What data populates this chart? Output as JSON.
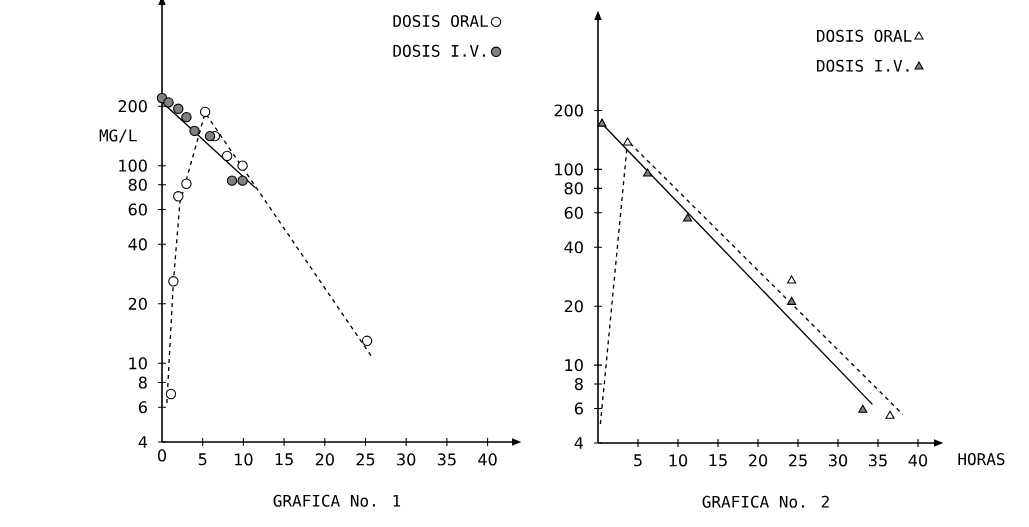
{
  "chart_data": [
    {
      "type": "scatter",
      "title": "GRAFICA No. 1",
      "ylabel": "MG/L",
      "log": "y",
      "legend": "top right",
      "xlim": [
        0,
        43
      ],
      "ylim": [
        4,
        650
      ],
      "xticks": [
        0,
        5,
        10,
        15,
        20,
        25,
        30,
        35,
        40
      ],
      "yticks": [
        4,
        6,
        8,
        10,
        20,
        40,
        60,
        80,
        100,
        200
      ],
      "series": [
        {
          "name": "DOSIS ORAL",
          "marker": "circle",
          "color": "#ffffff",
          "x": [
            1.1,
            1.4,
            2,
            3,
            5.3,
            6.5,
            8,
            9.9,
            25.2
          ],
          "values": [
            7,
            26,
            70,
            81,
            187,
            141,
            112,
            100,
            13
          ]
        },
        {
          "name": "DOSIS I.V.",
          "marker": "circle",
          "color": "#808080",
          "x": [
            0,
            0.8,
            2,
            3,
            4,
            5.9,
            8.6,
            9.9
          ],
          "values": [
            220,
            209,
            194,
            176,
            150,
            141,
            84,
            84
          ]
        },
        {
          "type": "line",
          "line_style": "dashed",
          "color": "#000000",
          "x": [
            0.6,
            1.4,
            2.2,
            5.3,
            25.9
          ],
          "values": [
            6.3,
            26,
            65,
            185,
            10.6
          ]
        },
        {
          "type": "line",
          "line_style": "solid",
          "color": "#000000",
          "x": [
            0,
            11.5
          ],
          "values": [
            210,
            77
          ]
        }
      ]
    },
    {
      "type": "scatter",
      "title": "GRAFICA No. 2",
      "xlabel": "HORAS",
      "log": "y",
      "legend": "top right",
      "xlim": [
        0,
        42
      ],
      "ylim": [
        4,
        580
      ],
      "xticks": [
        5,
        10,
        15,
        20,
        25,
        30,
        35,
        40
      ],
      "yticks": [
        4,
        6,
        8,
        10,
        20,
        40,
        60,
        80,
        100,
        200
      ],
      "series": [
        {
          "name": "DOSIS ORAL",
          "marker": "triangle",
          "color": "#ffffff",
          "x": [
            3.7,
            24.2,
            36.5
          ],
          "values": [
            137,
            27,
            5.5
          ]
        },
        {
          "name": "DOSIS I.V.",
          "marker": "triangle",
          "color": "#808080",
          "x": [
            0.5,
            6.2,
            11.2,
            24.2,
            33.1
          ],
          "values": [
            171,
            95,
            56,
            21,
            5.9
          ]
        },
        {
          "type": "line",
          "line_style": "dashed",
          "color": "#000000",
          "x": [
            0.3,
            3.7,
            38.1
          ],
          "values": [
            5,
            140,
            5.6
          ]
        },
        {
          "type": "line",
          "line_style": "solid",
          "color": "#000000",
          "x": [
            0.5,
            34.3
          ],
          "values": [
            171,
            6.3
          ]
        }
      ]
    }
  ]
}
